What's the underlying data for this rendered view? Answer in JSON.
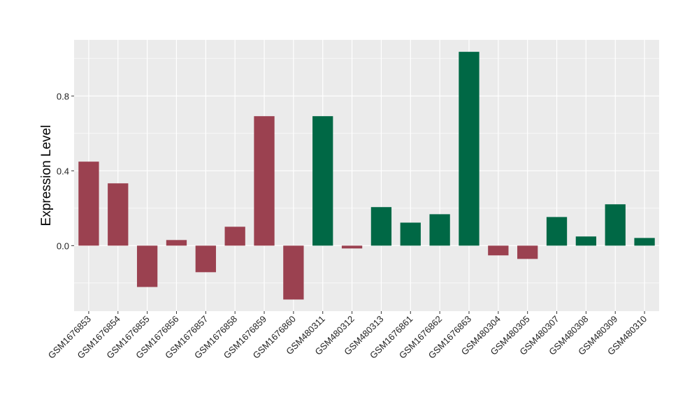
{
  "chart_data": {
    "type": "bar",
    "title": "",
    "xlabel": "",
    "ylabel": "Expression Level",
    "ylim": [
      -0.35,
      1.1
    ],
    "yticks": [
      0.0,
      0.4,
      0.8
    ],
    "ytick_labels": [
      "0.0",
      "0.4",
      "0.8"
    ],
    "grid": true,
    "legend": "none",
    "colors": {
      "group1": "#9b4150",
      "group2": "#006845",
      "panel": "#ebebeb",
      "grid": "#ffffff"
    },
    "categories": [
      "GSM1676853",
      "GSM1676854",
      "GSM1676855",
      "GSM1676856",
      "GSM1676857",
      "GSM1676858",
      "GSM1676859",
      "GSM1676860",
      "GSM480311",
      "GSM480312",
      "GSM480313",
      "GSM1676861",
      "GSM1676862",
      "GSM1676863",
      "GSM480304",
      "GSM480305",
      "GSM480307",
      "GSM480308",
      "GSM480309",
      "GSM480310"
    ],
    "values": [
      0.449,
      0.333,
      -0.221,
      0.03,
      -0.142,
      0.101,
      0.692,
      -0.288,
      0.692,
      -0.015,
      0.206,
      0.123,
      0.168,
      1.036,
      -0.052,
      -0.071,
      0.153,
      0.049,
      0.221,
      0.041
    ],
    "groups": [
      "group1",
      "group1",
      "group1",
      "group1",
      "group1",
      "group1",
      "group1",
      "group1",
      "group2",
      "group1",
      "group2",
      "group2",
      "group2",
      "group2",
      "group1",
      "group1",
      "group2",
      "group2",
      "group2",
      "group2"
    ]
  }
}
